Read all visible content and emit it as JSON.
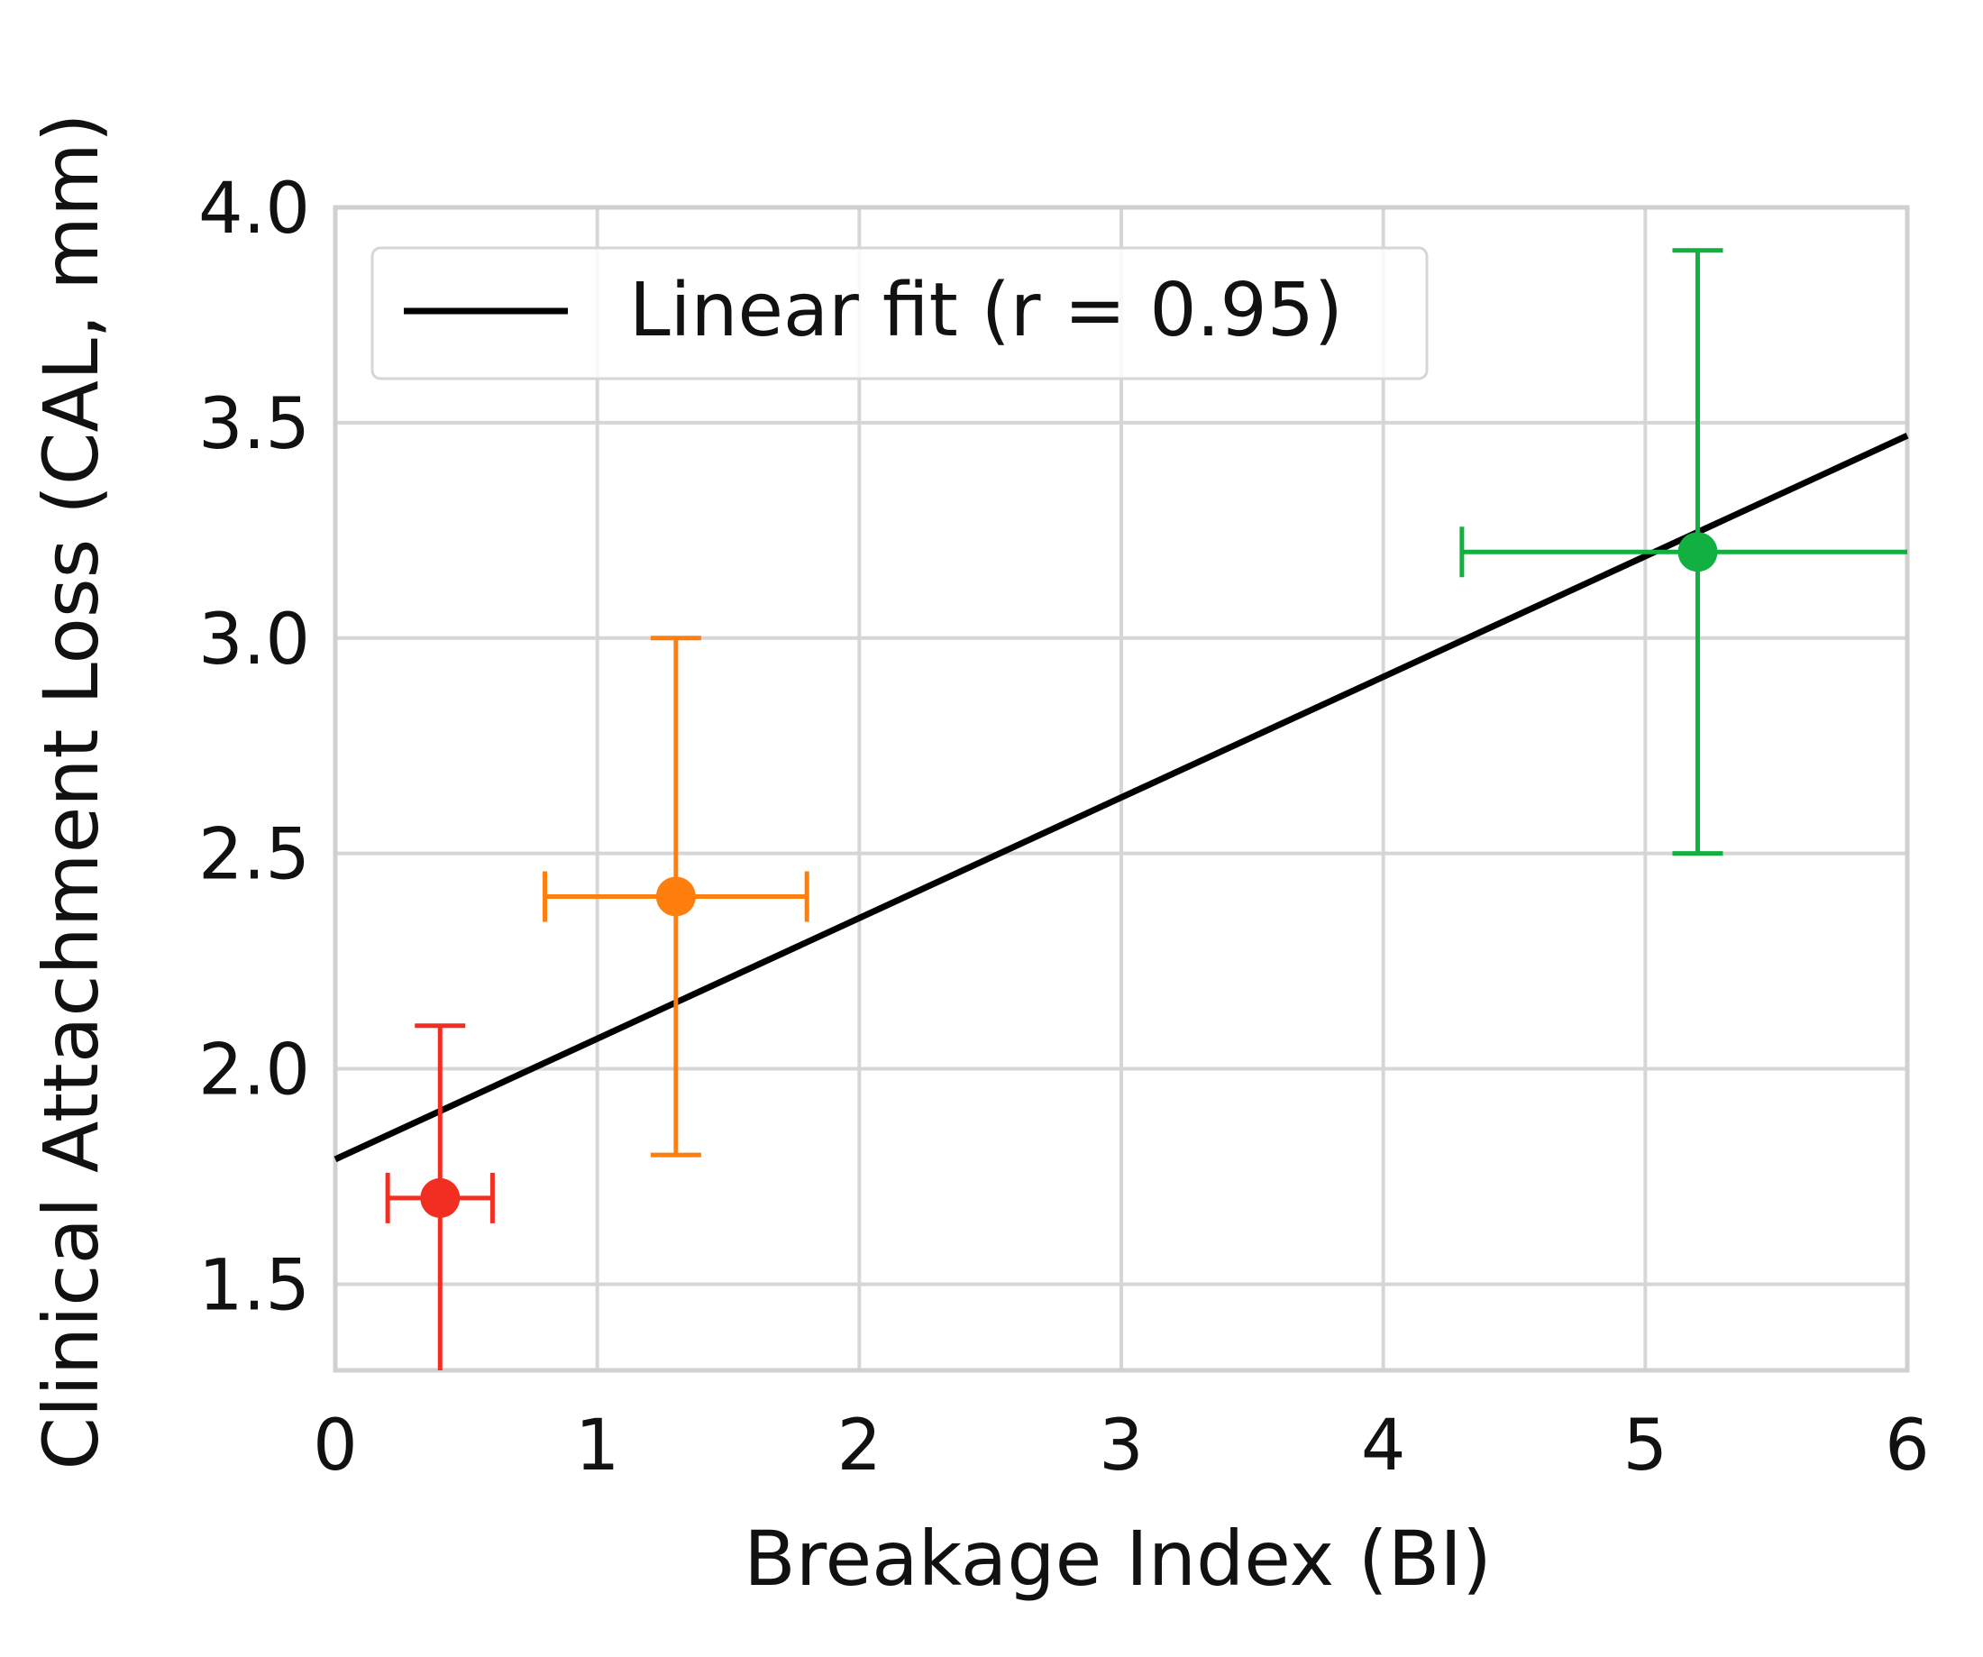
{
  "chart_data": {
    "type": "scatter",
    "xlabel": "Breakage Index (BI)",
    "ylabel": "Clinical Attachment Loss (CAL, mm)",
    "xlim": [
      0,
      6
    ],
    "ylim": [
      1.3,
      4.0
    ],
    "x_ticks": [
      "0",
      "1",
      "2",
      "3",
      "4",
      "5",
      "6"
    ],
    "y_ticks": [
      "1.5",
      "2.0",
      "2.5",
      "3.0",
      "3.5",
      "4.0"
    ],
    "grid": true,
    "legend_position": "top-left",
    "points": [
      {
        "x": 0.4,
        "y": 1.7,
        "xerr": 0.2,
        "yerr": 0.4,
        "color": "#f22e22"
      },
      {
        "x": 1.3,
        "y": 2.4,
        "xerr": 0.5,
        "yerr": 0.6,
        "color": "#ff7f0e"
      },
      {
        "x": 5.2,
        "y": 3.2,
        "xerr": 0.9,
        "yerr": 0.7,
        "color": "#12b040"
      }
    ],
    "fit_line": {
      "label": "Linear fit (r = 0.95)",
      "color": "#000000",
      "x": [
        0,
        6
      ],
      "y": [
        1.79,
        3.47
      ]
    }
  }
}
